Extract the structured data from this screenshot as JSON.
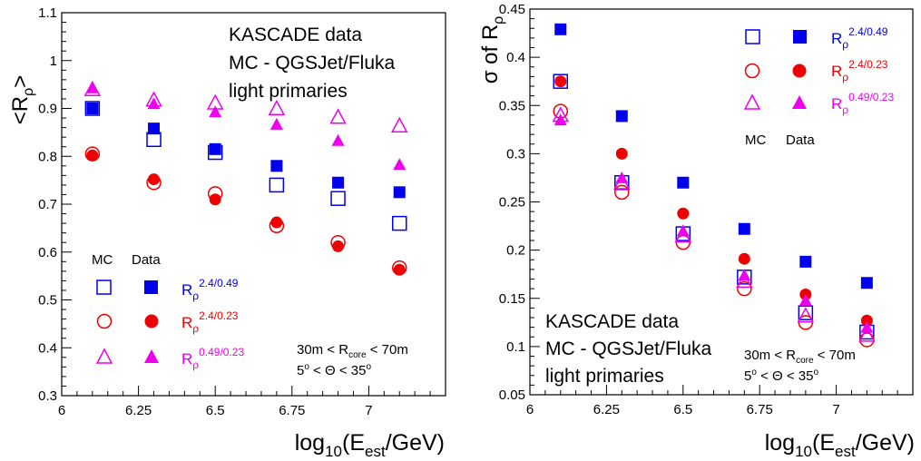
{
  "colors": {
    "r1": "#0000ee",
    "r2": "#ee0000",
    "r3": "#ee00ee",
    "axis": "#000000"
  },
  "chart_data": [
    {
      "type": "scatter",
      "title": "",
      "xlabel": "log10(Eest/GeV)",
      "ylabel": "<Rρ>",
      "xlim": [
        6,
        7.25
      ],
      "ylim": [
        0.3,
        1.1
      ],
      "x": [
        6.1,
        6.3,
        6.5,
        6.7,
        6.9,
        7.1
      ],
      "xticks": [
        "6",
        "6.25",
        "6.5",
        "6.75",
        "7"
      ],
      "yticks": [
        "0.3",
        "0.4",
        "0.5",
        "0.6",
        "0.7",
        "0.8",
        "0.9",
        "1",
        "1.1"
      ],
      "annotation_lines": [
        "KASCADE data",
        "MC - QGSJet/Fluka",
        "light primaries"
      ],
      "cut_lines": [
        "30m < Rcore < 70m",
        "5° < Θ < 35°"
      ],
      "legend_headers": [
        "MC",
        "Data"
      ],
      "series": [
        {
          "name": "Rρ 2.4/0.49",
          "mc": [
            0.9,
            0.835,
            0.808,
            0.74,
            0.712,
            0.66
          ],
          "data": [
            0.9,
            0.858,
            0.815,
            0.78,
            0.745,
            0.725
          ]
        },
        {
          "name": "Rρ 2.4/0.23",
          "mc": [
            0.805,
            0.745,
            0.722,
            0.655,
            0.62,
            0.567
          ],
          "data": [
            0.802,
            0.752,
            0.71,
            0.662,
            0.612,
            0.563
          ]
        },
        {
          "name": "Rρ 0.49/0.23",
          "mc": [
            0.94,
            0.918,
            0.912,
            0.9,
            0.882,
            0.864
          ],
          "data": [
            0.943,
            0.91,
            0.893,
            0.867,
            0.833,
            0.783
          ]
        }
      ]
    },
    {
      "type": "scatter",
      "title": "",
      "xlabel": "log10(Eest/GeV)",
      "ylabel": "σ of Rρ",
      "xlim": [
        6,
        7.25
      ],
      "ylim": [
        0.05,
        0.45
      ],
      "x": [
        6.1,
        6.3,
        6.5,
        6.7,
        6.9,
        7.1
      ],
      "xticks": [
        "6",
        "6.25",
        "6.5",
        "6.75",
        "7"
      ],
      "yticks": [
        "0.05",
        "0.1",
        "0.15",
        "0.2",
        "0.25",
        "0.3",
        "0.35",
        "0.4",
        "0.45"
      ],
      "annotation_lines": [
        "KASCADE data",
        "MC - QGSJet/Fluka",
        "light primaries"
      ],
      "cut_lines": [
        "30m < Rcore < 70m",
        "5° < Θ < 35°"
      ],
      "legend_headers": [
        "MC",
        "Data"
      ],
      "series": [
        {
          "name": "Rρ 2.4/0.49",
          "mc": [
            0.375,
            0.27,
            0.217,
            0.172,
            0.135,
            0.115
          ],
          "data": [
            0.429,
            0.339,
            0.27,
            0.222,
            0.188,
            0.166
          ]
        },
        {
          "name": "Rρ 2.4/0.23",
          "mc": [
            0.344,
            0.26,
            0.208,
            0.16,
            0.125,
            0.107
          ],
          "data": [
            0.375,
            0.3,
            0.238,
            0.191,
            0.154,
            0.127
          ]
        },
        {
          "name": "Rρ 0.49/0.23",
          "mc": [
            0.34,
            0.27,
            0.215,
            0.168,
            0.132,
            0.112
          ],
          "data": [
            0.335,
            0.275,
            0.22,
            0.174,
            0.148,
            0.12
          ]
        }
      ]
    }
  ],
  "labels": {
    "left_ylabel_pre": "<R",
    "left_ylabel_sub": "ρ",
    "left_ylabel_post": ">",
    "right_ylabel_pre": "σ of R",
    "right_ylabel_sub": "ρ",
    "xlabel_pre": "log",
    "xlabel_sub1": "10",
    "xlabel_mid": "(E",
    "xlabel_sub2": "est",
    "xlabel_post": "/GeV)",
    "legend_R": "R",
    "legend_rho": "ρ",
    "sup1": "2.4/0.49",
    "sup2": "2.4/0.23",
    "sup3": "0.49/0.23",
    "cut1_pre": "30m < R",
    "cut1_sub": "core",
    "cut1_post": " < 70m",
    "cut2_pre": "5",
    "cut2_deg": "o",
    "cut2_mid": " < Θ < 35",
    "cut2_deg2": "o"
  }
}
